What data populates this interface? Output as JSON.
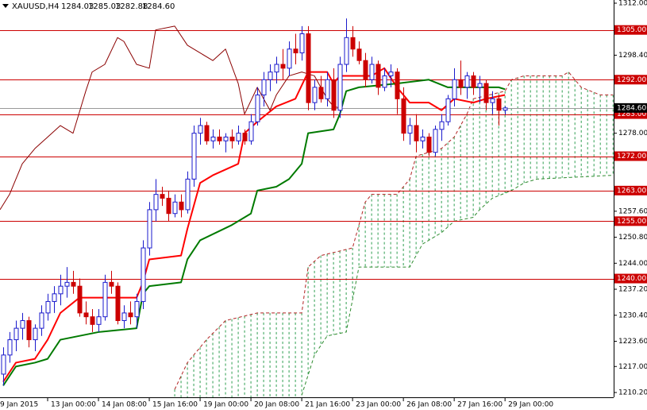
{
  "chart_data": {
    "type": "candlestick",
    "header": {
      "symbol": "XAUUSD,H4",
      "ohlc": [
        "1284.03",
        "1285.03",
        "1282.88",
        "1284.60"
      ]
    },
    "up_color": "#1a1acc",
    "down_color": "#cc0000",
    "open": [
      1215,
      1220,
      1224,
      1227,
      1229,
      1224,
      1227,
      1231,
      1234,
      1236,
      1238,
      1239,
      1238,
      1231,
      1230,
      1228,
      1230,
      1239,
      1238,
      1229,
      1231,
      1230,
      1234,
      1248,
      1258,
      1262,
      1261,
      1257,
      1260,
      1258,
      1266,
      1278,
      1280,
      1276,
      1277,
      1276,
      1277,
      1276,
      1278,
      1276,
      1281,
      1288,
      1292,
      1294,
      1296,
      1295,
      1300,
      1299,
      1304,
      1286,
      1290,
      1287,
      1292,
      1284,
      1296,
      1303,
      1300,
      1297,
      1292,
      1296,
      1290,
      1293,
      1294,
      1287,
      1278,
      1280,
      1276,
      1277,
      1273,
      1279,
      1281,
      1287,
      1292,
      1290,
      1293,
      1290,
      1291,
      1286,
      1287,
      1284.03
    ],
    "high": [
      1222,
      1226,
      1229,
      1231,
      1230,
      1228,
      1233,
      1236,
      1238,
      1241,
      1243,
      1242,
      1240,
      1234,
      1232,
      1232,
      1241,
      1242,
      1239,
      1233,
      1234,
      1236,
      1250,
      1260,
      1266,
      1264,
      1263,
      1262,
      1262,
      1268,
      1280,
      1282,
      1281,
      1279,
      1279,
      1278,
      1279,
      1280,
      1279,
      1283,
      1290,
      1294,
      1296,
      1298,
      1300,
      1302,
      1304,
      1306,
      1306,
      1292,
      1293,
      1294,
      1295,
      1298,
      1308,
      1306,
      1302,
      1299,
      1298,
      1297,
      1295,
      1296,
      1295,
      1290,
      1282,
      1283,
      1279,
      1278,
      1280,
      1283,
      1288,
      1295,
      1297,
      1294,
      1294,
      1293,
      1292,
      1289,
      1288,
      1285.03
    ],
    "low": [
      1212,
      1218,
      1221,
      1224,
      1222,
      1221,
      1225,
      1229,
      1231,
      1233,
      1235,
      1236,
      1230,
      1228,
      1226,
      1226,
      1229,
      1236,
      1228,
      1227,
      1228,
      1227,
      1232,
      1246,
      1255,
      1259,
      1255,
      1256,
      1256,
      1257,
      1264,
      1275,
      1275,
      1274,
      1275,
      1273,
      1274,
      1275,
      1275,
      1275,
      1280,
      1285,
      1289,
      1291,
      1292,
      1293,
      1296,
      1297,
      1284,
      1284,
      1286,
      1285,
      1282,
      1282,
      1294,
      1298,
      1296,
      1290,
      1291,
      1288,
      1289,
      1290,
      1283,
      1276,
      1275,
      1273,
      1274,
      1272,
      1272,
      1276,
      1280,
      1285,
      1288,
      1287,
      1288,
      1286,
      1284,
      1283,
      1280,
      1282.88
    ],
    "close": [
      1220,
      1224,
      1227,
      1229,
      1224,
      1227,
      1231,
      1234,
      1236,
      1238,
      1239,
      1238,
      1231,
      1230,
      1228,
      1230,
      1239,
      1238,
      1229,
      1231,
      1230,
      1234,
      1248,
      1258,
      1262,
      1261,
      1257,
      1260,
      1258,
      1266,
      1278,
      1280,
      1276,
      1277,
      1276,
      1277,
      1276,
      1278,
      1276,
      1281,
      1288,
      1292,
      1294,
      1296,
      1295,
      1300,
      1299,
      1304,
      1286,
      1290,
      1287,
      1292,
      1284,
      1296,
      1303,
      1300,
      1297,
      1292,
      1296,
      1290,
      1293,
      1294,
      1287,
      1278,
      1280,
      1276,
      1277,
      1273,
      1279,
      1281,
      1287,
      1292,
      1290,
      1293,
      1290,
      1291,
      1286,
      1287,
      1284,
      1284.6
    ],
    "lines": [
      {
        "color": "#ff0000",
        "width": 2,
        "x": [
          0,
          2,
          5,
          7,
          9,
          12,
          15,
          21,
          22,
          23,
          28,
          29,
          31,
          33,
          37,
          38,
          40,
          43,
          46,
          48,
          51,
          52,
          53,
          58,
          60,
          62,
          64,
          67,
          69,
          71,
          74,
          76,
          79
        ],
        "values": [
          1213,
          1218,
          1219,
          1224,
          1231,
          1235,
          1235,
          1235,
          1239,
          1245,
          1246,
          1253,
          1265,
          1267,
          1270,
          1278,
          1281,
          1285,
          1287,
          1294,
          1294,
          1291,
          1293,
          1293,
          1295,
          1290,
          1286,
          1286,
          1284,
          1287,
          1286,
          1287,
          1288
        ]
      },
      {
        "color": "#007a00",
        "width": 2,
        "x": [
          0,
          2,
          5,
          7,
          9,
          15,
          21,
          22,
          23,
          28,
          29,
          31,
          36,
          39,
          40,
          43,
          45,
          47,
          48,
          52,
          53,
          54,
          56,
          62,
          67,
          70,
          78,
          79
        ],
        "values": [
          1212,
          1217,
          1218,
          1219,
          1224,
          1226,
          1227,
          1236,
          1238,
          1239,
          1245,
          1250,
          1254,
          1257,
          1263,
          1264,
          1266,
          1270,
          1278,
          1279,
          1283,
          1289,
          1290,
          1291,
          1292,
          1290,
          1290,
          1289.5
        ]
      },
      {
        "color": "#8b0000",
        "width": 1,
        "x": [
          -0.5,
          1,
          3,
          5,
          7,
          9,
          11,
          13,
          14,
          16,
          18,
          19,
          21,
          23,
          24,
          27,
          29,
          31,
          33,
          35,
          37,
          38,
          40,
          42,
          43,
          45,
          47,
          49,
          51,
          52,
          53
        ],
        "values": [
          1258,
          1262,
          1270,
          1274,
          1277,
          1280,
          1278,
          1289,
          1294,
          1296,
          1303,
          1302,
          1296,
          1295,
          1305,
          1306,
          1301,
          1299,
          1297,
          1300,
          1291,
          1283,
          1290,
          1284,
          1288,
          1293,
          1294,
          1293,
          1287,
          1285,
          1284.6
        ]
      }
    ],
    "cloud": {
      "fill_color": "#2e9e50",
      "span_a": {
        "color": "#b22222",
        "x": [
          27,
          29,
          32,
          35,
          40,
          47,
          48,
          50,
          55,
          57,
          58,
          62,
          64,
          65,
          69,
          71,
          73,
          74,
          79,
          80,
          82,
          88,
          89,
          91,
          94,
          96
        ],
        "values": [
          1211,
          1218,
          1224,
          1229,
          1231,
          1231,
          1243,
          1246,
          1248,
          1260,
          1262,
          1262,
          1266,
          1272,
          1274,
          1277,
          1283,
          1287,
          1289,
          1292,
          1293,
          1293,
          1294,
          1290,
          1288,
          1288
        ]
      },
      "span_b": {
        "color": "#2e8b2e",
        "x": [
          47,
          49,
          51,
          54,
          56,
          64,
          66,
          69,
          71,
          74,
          75,
          77,
          80,
          82,
          84,
          96
        ],
        "values": [
          1209.5,
          1220,
          1225,
          1226,
          1243,
          1243,
          1249,
          1252,
          1255,
          1256,
          1258,
          1261,
          1263,
          1265,
          1266,
          1267
        ]
      }
    },
    "hline_color": "#cc0000",
    "hlines": [
      {
        "value": 1305,
        "label": "1305.00"
      },
      {
        "value": 1292,
        "label": "1292.00"
      },
      {
        "value": 1283,
        "label": "1283.00"
      },
      {
        "value": 1272,
        "label": "1272.00"
      },
      {
        "value": 1263,
        "label": "1263.00"
      },
      {
        "value": 1255,
        "label": "1255.00"
      },
      {
        "value": 1240,
        "label": "1240.00"
      }
    ],
    "bid": {
      "value": 1284.6,
      "label": "1284.60"
    },
    "ylim": [
      1208.95,
      1312.83
    ],
    "yticks": [
      {
        "value": 1312,
        "label": "1312.00"
      },
      {
        "value": 1298.4,
        "label": "1298.40"
      },
      {
        "value": 1278,
        "label": "1278.00"
      },
      {
        "value": 1257.6,
        "label": "1257.60"
      },
      {
        "value": 1250.8,
        "label": "1250.80"
      },
      {
        "value": 1244,
        "label": "1244.00"
      },
      {
        "value": 1237.2,
        "label": "1237.20"
      },
      {
        "value": 1230.4,
        "label": "1230.40"
      },
      {
        "value": 1223.6,
        "label": "1223.60"
      },
      {
        "value": 1217,
        "label": "1217.00"
      },
      {
        "value": 1210.2,
        "label": "1210.20"
      }
    ],
    "xlim": [
      -0.5,
      96.1
    ],
    "xticks": [
      {
        "value": -1,
        "label": "9 Jan 2015"
      },
      {
        "value": 7,
        "label": "13 Jan 00:00"
      },
      {
        "value": 15,
        "label": "14 Jan 08:00"
      },
      {
        "value": 23,
        "label": "15 Jan 16:00"
      },
      {
        "value": 31,
        "label": "19 Jan 00:00"
      },
      {
        "value": 39,
        "label": "20 Jan 08:00"
      },
      {
        "value": 47,
        "label": "21 Jan 16:00"
      },
      {
        "value": 55,
        "label": "23 Jan 00:00"
      },
      {
        "value": 63,
        "label": "26 Jan 08:00"
      },
      {
        "value": 71,
        "label": "27 Jan 16:00"
      },
      {
        "value": 79,
        "label": "29 Jan 00:00"
      }
    ]
  }
}
